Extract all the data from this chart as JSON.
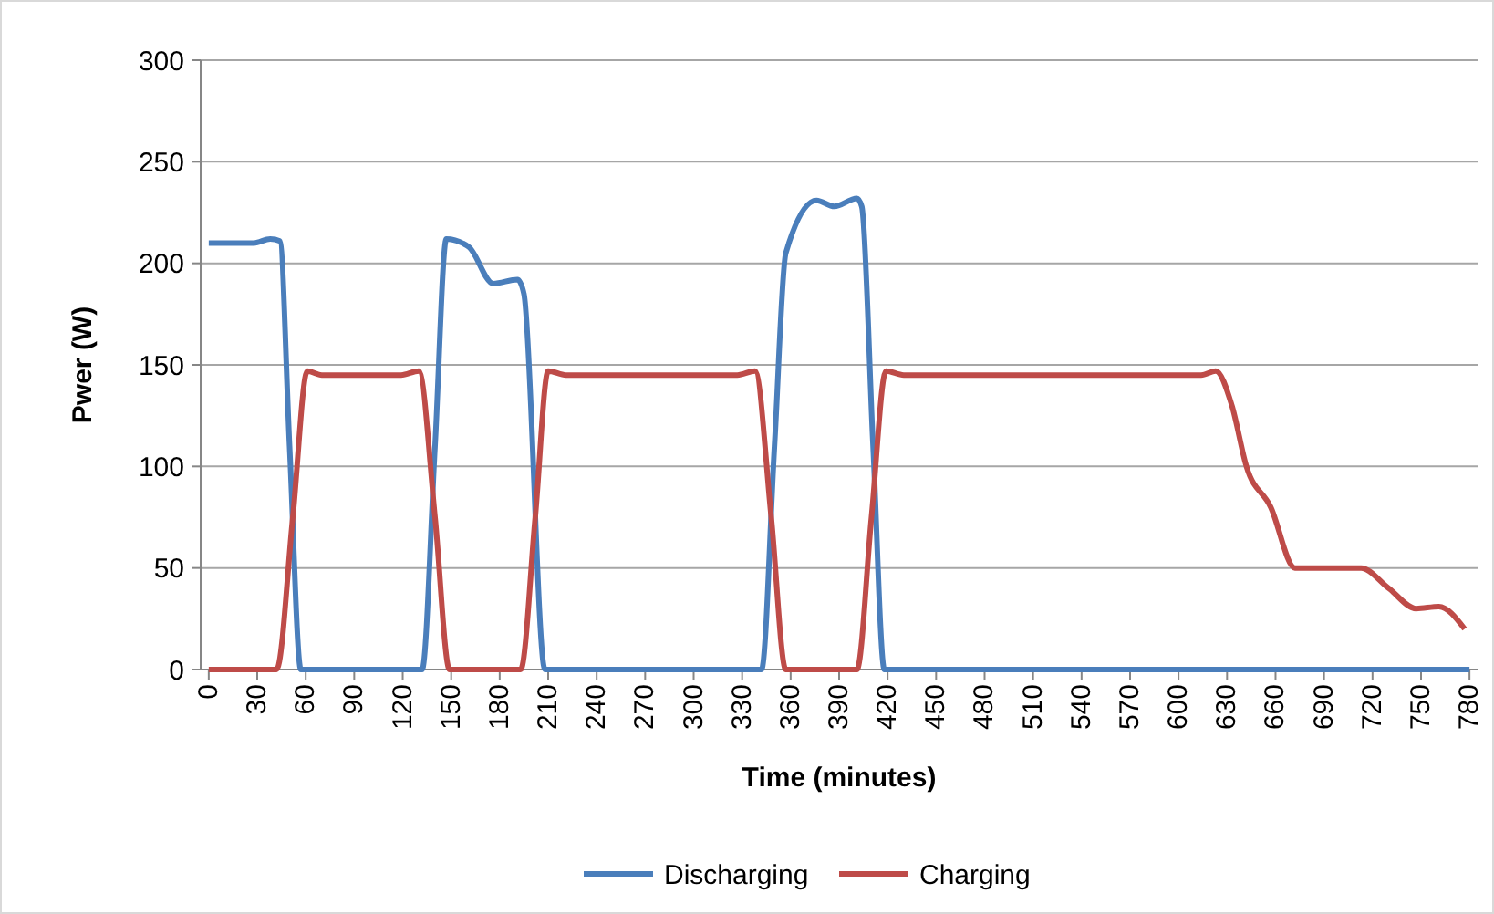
{
  "chart_data": {
    "type": "line",
    "xlabel": "Time (minutes)",
    "ylabel": "Pwer (W)",
    "xlim": [
      -5,
      785
    ],
    "xticks": [
      0,
      30,
      60,
      90,
      120,
      150,
      180,
      210,
      240,
      270,
      300,
      330,
      360,
      390,
      420,
      450,
      480,
      510,
      540,
      570,
      600,
      630,
      660,
      690,
      720,
      750,
      780
    ],
    "ylim": [
      0,
      300
    ],
    "yticks": [
      0,
      50,
      100,
      150,
      200,
      250,
      300
    ],
    "grid": "y",
    "legend": "bottom",
    "marker": "none",
    "line_style": "solid",
    "series": [
      {
        "name": "Discharging",
        "color": "#4a7ebb",
        "x": [
          0,
          28,
          38,
          44,
          50,
          57,
          132,
          140,
          147,
          161,
          176,
          191,
          195,
          208,
          342,
          350,
          357,
          376,
          387,
          401,
          404,
          411,
          418,
          780
        ],
        "values": [
          210,
          210,
          212,
          211,
          110,
          0,
          0,
          110,
          212,
          208,
          190,
          192,
          185,
          0,
          0,
          110,
          205,
          231,
          228,
          232,
          228,
          110,
          0,
          0
        ]
      },
      {
        "name": "Charging",
        "color": "#be4b48",
        "x": [
          0,
          42,
          52,
          61,
          70,
          119,
          130,
          140,
          149,
          193,
          202,
          210,
          221,
          327,
          338,
          348,
          357,
          401,
          410,
          419,
          430,
          614,
          623,
          633,
          642,
          657,
          672,
          685,
          700,
          713,
          730,
          747,
          761,
          777
        ],
        "values": [
          0,
          0,
          75,
          147,
          145,
          145,
          147,
          75,
          0,
          0,
          75,
          147,
          145,
          145,
          147,
          75,
          0,
          0,
          75,
          147,
          145,
          145,
          147,
          130,
          100,
          80,
          50,
          50,
          50,
          50,
          40,
          30,
          31,
          20
        ]
      }
    ]
  }
}
